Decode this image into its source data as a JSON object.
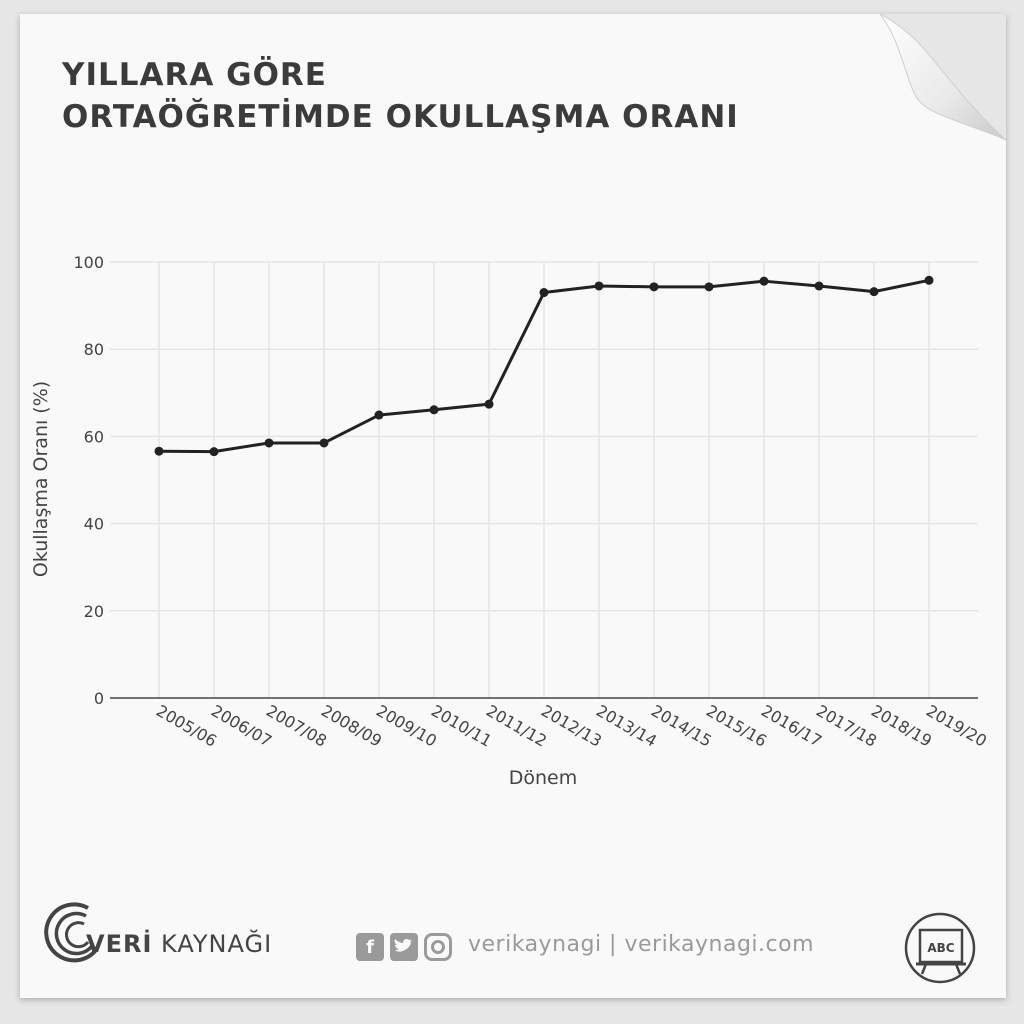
{
  "title": {
    "line1": "YILLARA GÖRE",
    "line2": "ORTAÖĞRETİMDE OKULLAŞMA ORANI"
  },
  "chart_data": {
    "type": "line",
    "title": "YILLARA GÖRE ORTAÖĞRETİMDE OKULLAŞMA ORANI",
    "xlabel": "Dönem",
    "ylabel": "Okullaşma Oranı (%)",
    "ylim": [
      0,
      100
    ],
    "yticks": [
      0,
      20,
      40,
      60,
      80,
      100
    ],
    "grid": true,
    "categories": [
      "2005/06",
      "2006/07",
      "2007/08",
      "2008/09",
      "2009/10",
      "2010/11",
      "2011/12",
      "2012/13",
      "2013/14",
      "2014/15",
      "2015/16",
      "2016/17",
      "2017/18",
      "2018/19",
      "2019/20"
    ],
    "series": [
      {
        "values": [
          56.6,
          56.5,
          58.5,
          58.5,
          64.9,
          66.1,
          67.4,
          93.0,
          94.5,
          94.3,
          94.3,
          95.6,
          94.5,
          93.2,
          95.8
        ],
        "color": "#222222"
      }
    ]
  },
  "footer": {
    "brand_bold": "VERİ",
    "brand_rest": " KAYNAĞI",
    "social_text": "verikaynagi | verikaynagi.com",
    "icons": [
      "facebook-icon",
      "twitter-icon",
      "instagram-icon"
    ],
    "badge_text": "ABC"
  },
  "colors": {
    "background": "#f9f9f9",
    "grid": "#e6e6e6",
    "line": "#222222",
    "title": "#3b3b3b",
    "footer": "#9a9a9a"
  }
}
